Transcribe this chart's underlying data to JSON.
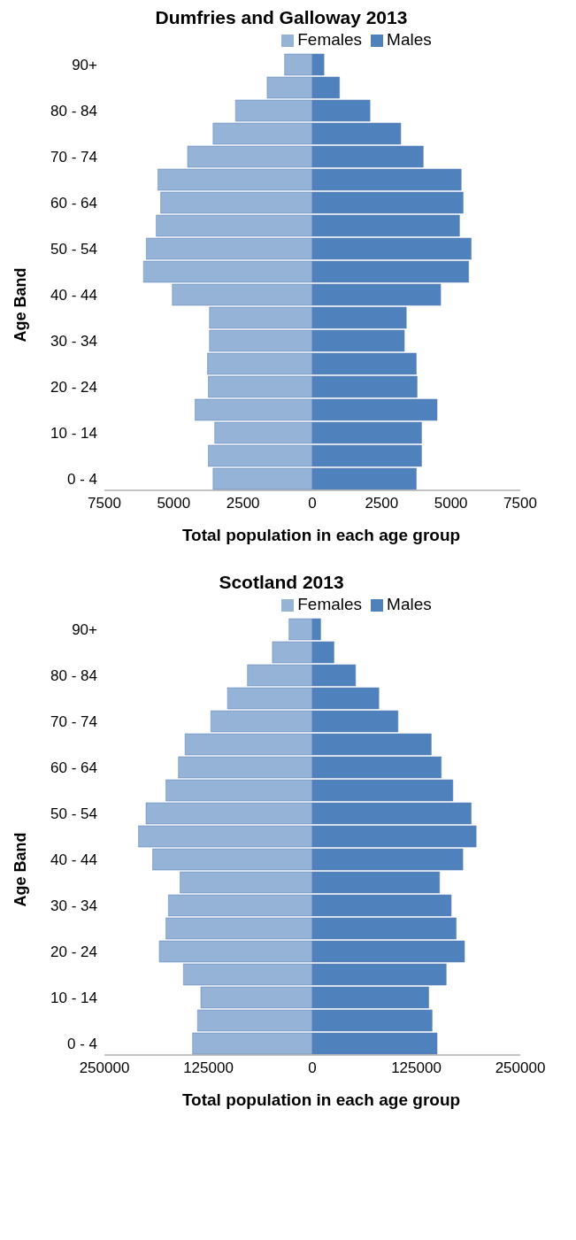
{
  "chart_data": [
    {
      "type": "bar",
      "orientation": "horizontal",
      "stacked": true,
      "title": "Dumfries and Galloway 2013",
      "xlabel": "Total population in each age group",
      "ylabel": "Age Band",
      "legend": "top",
      "grid": false,
      "categories": [
        "90+",
        null,
        "80 - 84",
        null,
        "70 - 74",
        null,
        "60 - 64",
        null,
        "50 - 54",
        null,
        "40 - 44",
        null,
        "30 - 34",
        null,
        "20 - 24",
        null,
        "10 - 14",
        null,
        "0 - 4"
      ],
      "xlim": [
        -7500,
        7500
      ],
      "xticks": [
        {
          "value": -7500,
          "label": "7500"
        },
        {
          "value": -5000,
          "label": "5000"
        },
        {
          "value": -2500,
          "label": "2500"
        },
        0,
        2500,
        5000,
        7500
      ],
      "series": [
        {
          "name": "Females",
          "color": "#95b3d7",
          "values": [
            -1000,
            -1630,
            -2770,
            -3580,
            -4500,
            -5570,
            -5470,
            -5630,
            -5990,
            -6090,
            -5050,
            -3710,
            -3710,
            -3780,
            -3750,
            -4230,
            -3520,
            -3750,
            -3580
          ]
        },
        {
          "name": "Males",
          "color": "#4f81bd",
          "values": [
            420,
            980,
            2080,
            3190,
            4000,
            5370,
            5440,
            5310,
            5730,
            5640,
            4630,
            3390,
            3320,
            3750,
            3780,
            4500,
            3940,
            3940,
            3750
          ]
        }
      ]
    },
    {
      "type": "bar",
      "orientation": "horizontal",
      "stacked": true,
      "title": "Scotland 2013",
      "xlabel": "Total population in each age group",
      "ylabel": "Age Band",
      "legend": "top",
      "grid": false,
      "categories": [
        "90+",
        null,
        "80 - 84",
        null,
        "70 - 74",
        null,
        "60 - 64",
        null,
        "50 - 54",
        null,
        "40 - 44",
        null,
        "30 - 34",
        null,
        "20 - 24",
        null,
        "10 - 14",
        null,
        "0 - 4"
      ],
      "xlim": [
        -250000,
        250000
      ],
      "xticks": [
        {
          "value": -250000,
          "label": "250000"
        },
        {
          "value": -125000,
          "label": "125000"
        },
        0,
        125000,
        250000
      ],
      "series": [
        {
          "name": "Females",
          "color": "#95b3d7",
          "values": [
            -28000,
            -48000,
            -78000,
            -102000,
            -122000,
            -153000,
            -161000,
            -176000,
            -200000,
            -209000,
            -192000,
            -159000,
            -173000,
            -176000,
            -184000,
            -155000,
            -134000,
            -138000,
            -144000
          ]
        },
        {
          "name": "Males",
          "color": "#4f81bd",
          "values": [
            10000,
            26000,
            52000,
            80000,
            103000,
            143000,
            155000,
            169000,
            191000,
            197000,
            181000,
            153000,
            167000,
            173000,
            183000,
            161000,
            140000,
            144000,
            150000
          ]
        }
      ]
    }
  ]
}
